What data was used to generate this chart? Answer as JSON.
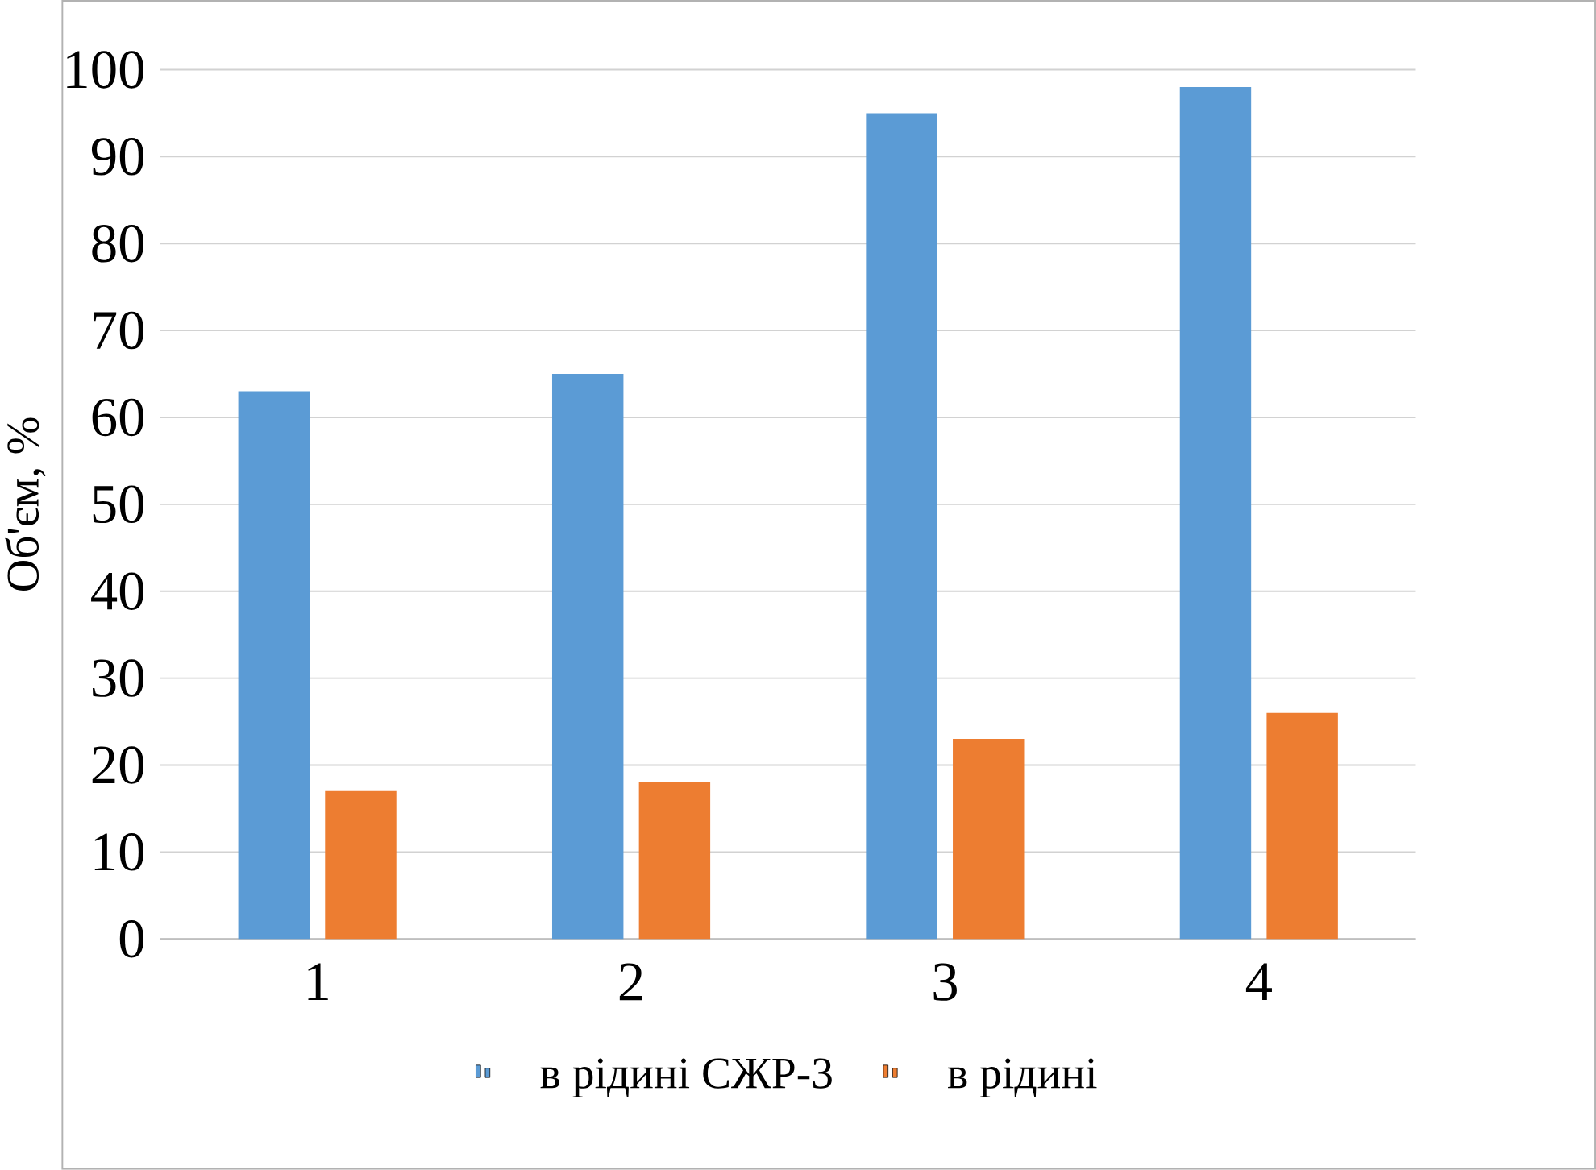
{
  "chart_data": {
    "type": "bar",
    "ylabel": "Об'єм, %",
    "categories": [
      "1",
      "2",
      "3",
      "4"
    ],
    "series": [
      {
        "name": "в рідині СЖР-3",
        "color": "#5b9bd5",
        "values": [
          63,
          65,
          95,
          98
        ]
      },
      {
        "name": "в рідині",
        "color": "#ed7d31",
        "values": [
          17,
          18,
          23,
          26
        ]
      }
    ],
    "ylim": [
      0,
      100
    ],
    "yticks": [
      0,
      10,
      20,
      30,
      40,
      50,
      60,
      70,
      80,
      90,
      100
    ],
    "grid": "y",
    "legend": "bottom"
  }
}
